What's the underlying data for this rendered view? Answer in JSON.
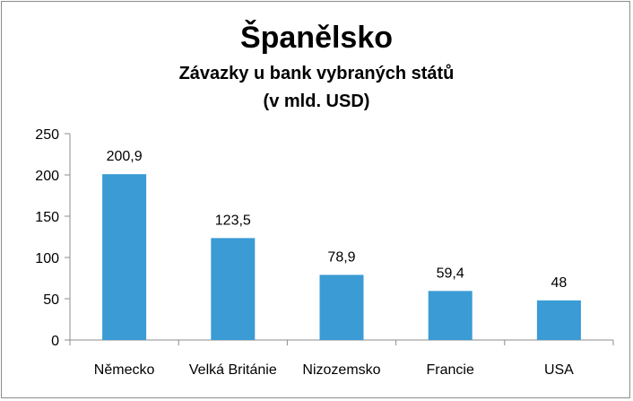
{
  "chart_data": {
    "type": "bar",
    "title": "Španělsko",
    "subtitle_line1": "Závazky u bank vybraných států",
    "subtitle_line2": "(v mld. USD)",
    "categories": [
      "Německo",
      "Velká Británie",
      "Nizozemsko",
      "Francie",
      "USA"
    ],
    "values": [
      200.9,
      123.5,
      78.9,
      59.4,
      48
    ],
    "data_labels": [
      "200,9",
      "123,5",
      "78,9",
      "59,4",
      "48"
    ],
    "yticks": [
      "0",
      "50",
      "100",
      "150",
      "200",
      "250"
    ],
    "ylim": [
      0,
      250
    ],
    "legend": "none",
    "grid": false,
    "bar_color": "#3a9bd5"
  }
}
